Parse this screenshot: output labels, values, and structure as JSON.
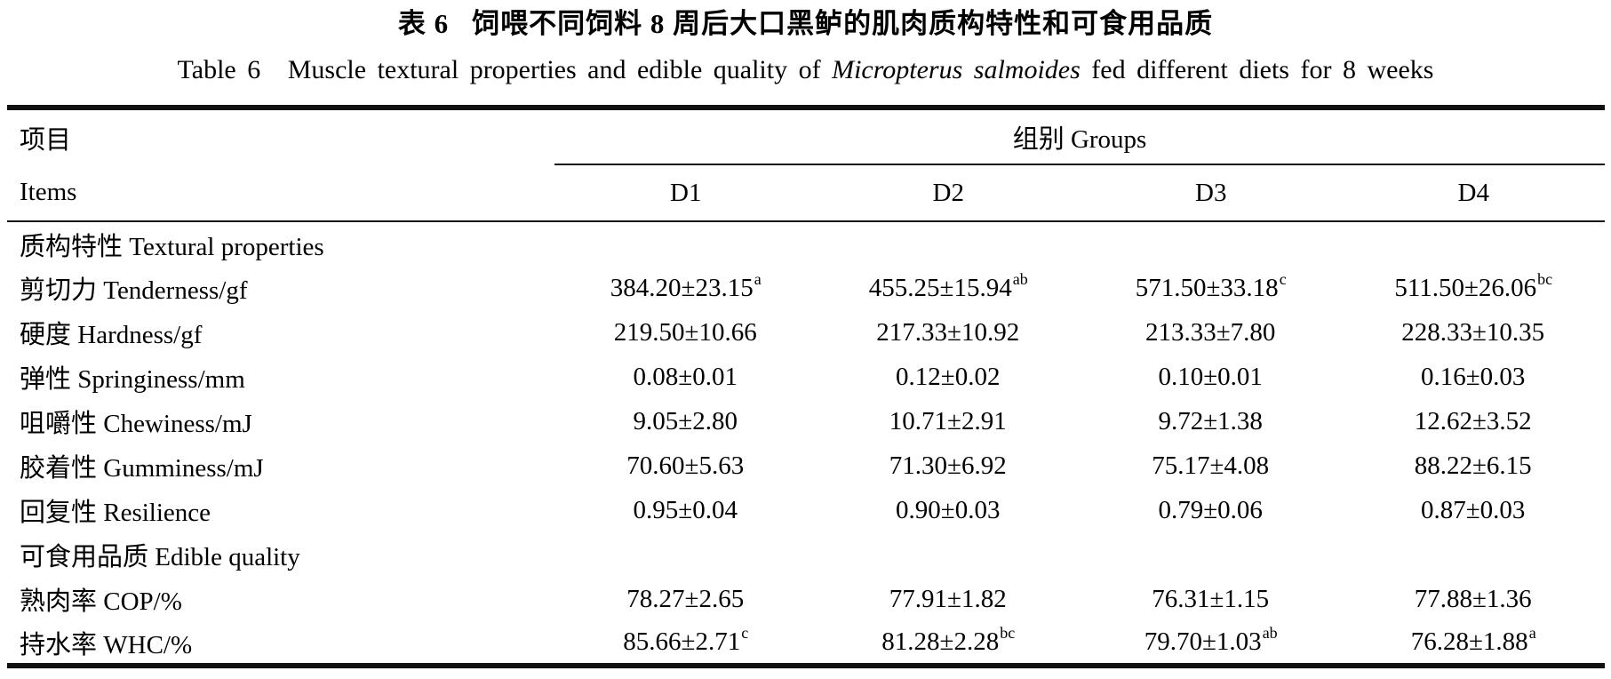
{
  "colors": {
    "text": "#000000",
    "rule": "#111111",
    "background": "#ffffff"
  },
  "title": {
    "zh_label": "表 6",
    "zh_text": "饲喂不同饲料 8 周后大口黑鲈的肌肉质构特性和可食用品质",
    "en_label": "Table 6",
    "en_before_species": "Muscle textural properties and edible quality of",
    "en_species": "Micropterus salmoides",
    "en_after_species": "fed different diets for 8 weeks"
  },
  "header": {
    "items_zh": "项目",
    "items_en": "Items",
    "groups_label": "组别 Groups",
    "columns": [
      "D1",
      "D2",
      "D3",
      "D4"
    ]
  },
  "rows": [
    {
      "type": "section",
      "label": "质构特性 Textural properties"
    },
    {
      "type": "data",
      "label": "剪切力 Tenderness/gf",
      "cells": [
        {
          "text": "384.20±23.15",
          "sup": "a"
        },
        {
          "text": "455.25±15.94",
          "sup": "ab"
        },
        {
          "text": "571.50±33.18",
          "sup": "c"
        },
        {
          "text": "511.50±26.06",
          "sup": "bc"
        }
      ]
    },
    {
      "type": "data",
      "label": "硬度 Hardness/gf",
      "cells": [
        {
          "text": "219.50±10.66",
          "sup": ""
        },
        {
          "text": "217.33±10.92",
          "sup": ""
        },
        {
          "text": "213.33±7.80",
          "sup": ""
        },
        {
          "text": "228.33±10.35",
          "sup": ""
        }
      ]
    },
    {
      "type": "data",
      "label": "弹性 Springiness/mm",
      "cells": [
        {
          "text": "0.08±0.01",
          "sup": ""
        },
        {
          "text": "0.12±0.02",
          "sup": ""
        },
        {
          "text": "0.10±0.01",
          "sup": ""
        },
        {
          "text": "0.16±0.03",
          "sup": ""
        }
      ]
    },
    {
      "type": "data",
      "label": "咀嚼性 Chewiness/mJ",
      "cells": [
        {
          "text": "9.05±2.80",
          "sup": ""
        },
        {
          "text": "10.71±2.91",
          "sup": ""
        },
        {
          "text": "9.72±1.38",
          "sup": ""
        },
        {
          "text": "12.62±3.52",
          "sup": ""
        }
      ]
    },
    {
      "type": "data",
      "label": "胶着性 Gumminess/mJ",
      "cells": [
        {
          "text": "70.60±5.63",
          "sup": ""
        },
        {
          "text": "71.30±6.92",
          "sup": ""
        },
        {
          "text": "75.17±4.08",
          "sup": ""
        },
        {
          "text": "88.22±6.15",
          "sup": ""
        }
      ]
    },
    {
      "type": "data",
      "label": "回复性 Resilience",
      "cells": [
        {
          "text": "0.95±0.04",
          "sup": ""
        },
        {
          "text": "0.90±0.03",
          "sup": ""
        },
        {
          "text": "0.79±0.06",
          "sup": ""
        },
        {
          "text": "0.87±0.03",
          "sup": ""
        }
      ]
    },
    {
      "type": "section",
      "label": "可食用品质 Edible quality"
    },
    {
      "type": "data",
      "label": "熟肉率 COP/%",
      "cells": [
        {
          "text": "78.27±2.65",
          "sup": ""
        },
        {
          "text": "77.91±1.82",
          "sup": ""
        },
        {
          "text": "76.31±1.15",
          "sup": ""
        },
        {
          "text": "77.88±1.36",
          "sup": ""
        }
      ]
    },
    {
      "type": "data",
      "label": "持水率 WHC/%",
      "cells": [
        {
          "text": "85.66±2.71",
          "sup": "c"
        },
        {
          "text": "81.28±2.28",
          "sup": "bc"
        },
        {
          "text": "79.70±1.03",
          "sup": "ab"
        },
        {
          "text": "76.28±1.88",
          "sup": "a"
        }
      ]
    }
  ]
}
